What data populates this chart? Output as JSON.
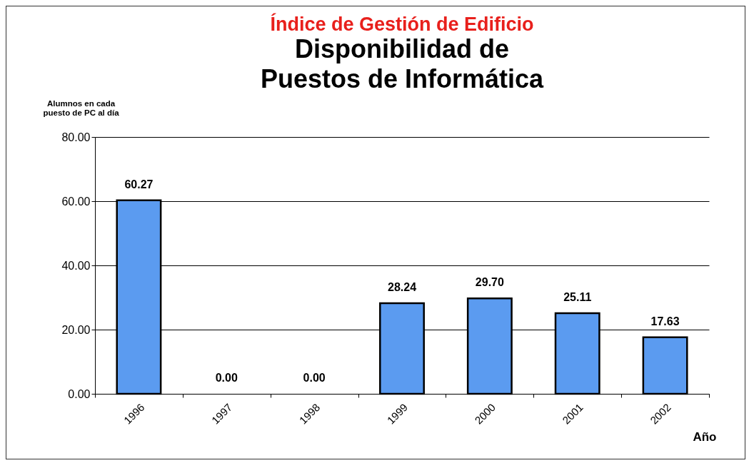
{
  "chart_data": {
    "type": "bar",
    "title": "Índice de Gestión de Edificio",
    "subtitle": "Disponibilidad de Puestos de Informática",
    "ylabel": "Alumnos en cada puesto de PC al día",
    "xlabel": "Año",
    "categories": [
      "1996",
      "1997",
      "1998",
      "1999",
      "2000",
      "2001",
      "2002"
    ],
    "values": [
      60.27,
      0,
      0,
      28.24,
      29.7,
      25.11,
      17.63
    ],
    "value_labels": [
      "60.27",
      "0.00",
      "0.00",
      "28.24",
      "29.70",
      "25.11",
      "17.63"
    ],
    "color": "#5b9bf0",
    "ylim": [
      0,
      80
    ],
    "yticks": [
      {
        "value": 0,
        "label": "0.00"
      },
      {
        "value": 20,
        "label": "20.00"
      },
      {
        "value": 40,
        "label": "40.00"
      },
      {
        "value": 60,
        "label": "60.00"
      },
      {
        "value": 80,
        "label": "80.00"
      }
    ],
    "grid": "y"
  }
}
